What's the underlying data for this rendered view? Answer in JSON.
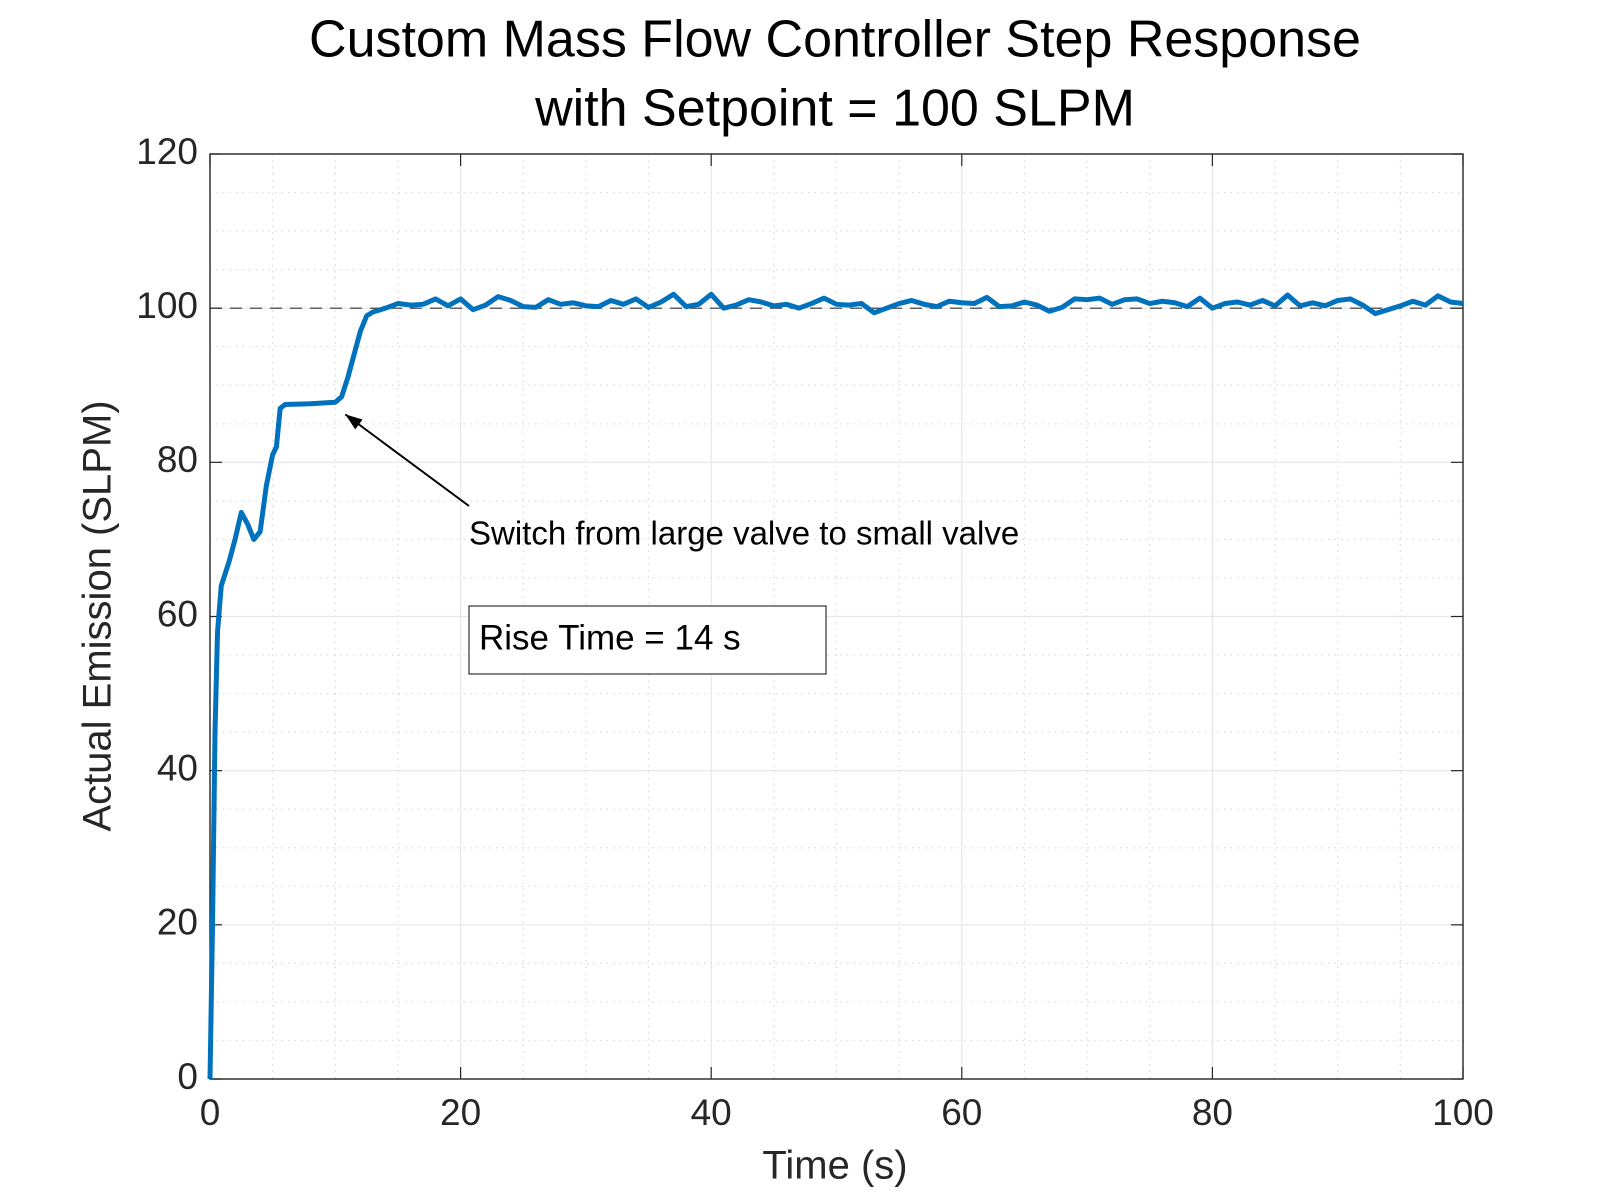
{
  "chart_data": {
    "type": "line",
    "title": [
      "Custom Mass Flow Controller Step Response",
      "with Setpoint = 100 SLPM"
    ],
    "xlabel": "Time (s)",
    "ylabel": "Actual Emission (SLPM)",
    "color": "#0072bd",
    "x": [
      0,
      0.2,
      0.4,
      0.6,
      0.9,
      1.5,
      2,
      2.5,
      3,
      3.5,
      4,
      4.5,
      5,
      5.3,
      5.6,
      6,
      8,
      10,
      10.5,
      11,
      11.5,
      12,
      12.5,
      13,
      14,
      15,
      16,
      17,
      18,
      19,
      20,
      21,
      22,
      23,
      24,
      25,
      26,
      27,
      28,
      29,
      30,
      31,
      32,
      33,
      34,
      35,
      36,
      37,
      38,
      39,
      40,
      41,
      42,
      43,
      44,
      45,
      46,
      47,
      48,
      49,
      50,
      51,
      52,
      53,
      54,
      55,
      56,
      57,
      58,
      59,
      60,
      61,
      62,
      63,
      64,
      65,
      66,
      67,
      68,
      69,
      70,
      71,
      72,
      73,
      74,
      75,
      76,
      77,
      78,
      79,
      80,
      81,
      82,
      83,
      84,
      85,
      86,
      87,
      88,
      89,
      90,
      91,
      92,
      93,
      94,
      95,
      96,
      97,
      98,
      99,
      100
    ],
    "values": [
      0,
      20,
      45,
      58,
      64,
      67,
      70,
      73.5,
      72,
      70,
      71,
      77,
      81,
      82,
      87,
      87.5,
      87.6,
      87.8,
      88.5,
      91,
      94,
      97,
      99,
      99.5,
      100,
      100.6,
      100.4,
      100.5,
      101.2,
      100.3,
      101.2,
      99.8,
      100.4,
      101.5,
      101,
      100.2,
      100.1,
      101.1,
      100.5,
      100.7,
      100.3,
      100.2,
      101,
      100.5,
      101.2,
      100.1,
      100.8,
      101.8,
      100.2,
      100.5,
      101.8,
      100,
      100.4,
      101.1,
      100.8,
      100.3,
      100.5,
      100,
      100.6,
      101.3,
      100.5,
      100.4,
      100.6,
      99.4,
      100,
      100.6,
      101,
      100.5,
      100.2,
      100.9,
      100.7,
      100.6,
      101.4,
      100.2,
      100.3,
      100.8,
      100.4,
      99.6,
      100.1,
      101.2,
      101.1,
      101.3,
      100.5,
      101.1,
      101.2,
      100.6,
      100.9,
      100.7,
      100.2,
      101.3,
      100,
      100.6,
      100.8,
      100.4,
      101,
      100.3,
      101.7,
      100.3,
      100.7,
      100.3,
      101,
      101.2,
      100.4,
      99.3,
      99.8,
      100.3,
      100.9,
      100.4,
      101.6,
      100.8,
      100.6
    ],
    "xlim": [
      0,
      100
    ],
    "xticks": [
      0,
      20,
      40,
      60,
      80,
      100
    ],
    "ylim": [
      0,
      120
    ],
    "yticks": [
      0,
      20,
      40,
      60,
      80,
      100,
      120
    ],
    "grid": true,
    "minor_grid": true,
    "reference_line": 100,
    "annotation": {
      "text": "Switch from large valve to small valve",
      "x": 10,
      "y": 87
    },
    "textbox": "Rise Time = 14 s"
  }
}
